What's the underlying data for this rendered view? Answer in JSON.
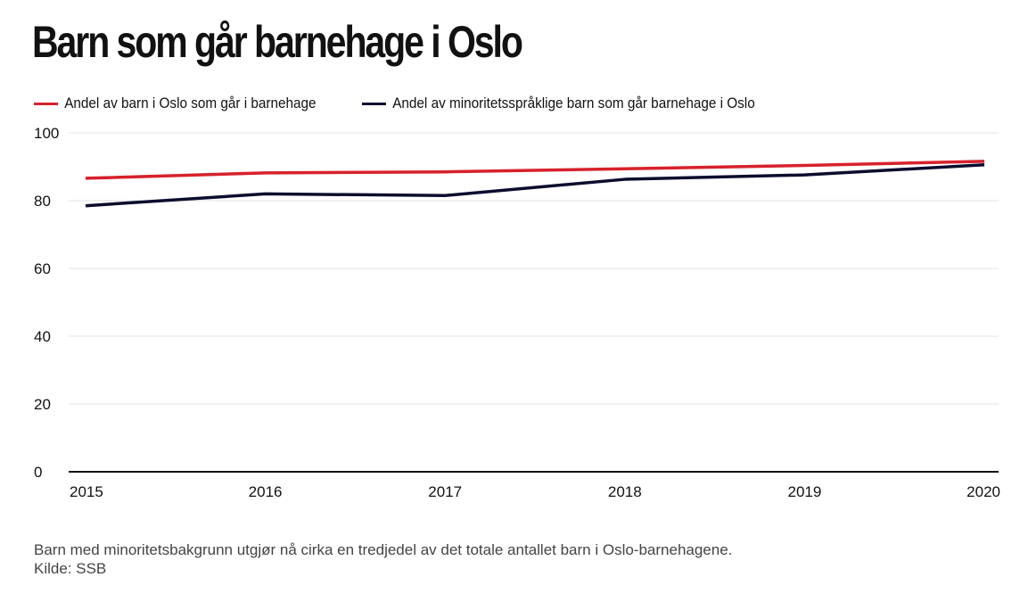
{
  "chart_data": {
    "type": "line",
    "title": "Barn som går barnehage i Oslo",
    "x": [
      "2015",
      "2016",
      "2017",
      "2018",
      "2019",
      "2020"
    ],
    "series": [
      {
        "name": "Andel av barn i Oslo som går i barnehage",
        "color": "#d7212b",
        "values": [
          86.6,
          88.2,
          88.5,
          89.4,
          90.4,
          91.6
        ]
      },
      {
        "name": "Andel av minoritetsspråklige barn som går barnehage i Oslo",
        "color": "#0b0d2e",
        "values": [
          78.5,
          82.0,
          81.5,
          86.3,
          87.6,
          90.6
        ]
      }
    ],
    "yticks": [
      "0",
      "20",
      "40",
      "60",
      "80",
      "100"
    ],
    "ylim": [
      0,
      100
    ],
    "grid": true,
    "legend": "top-left",
    "xlabel": "",
    "ylabel": ""
  },
  "footer": {
    "note": "Barn med minoritetsbakgrunn utgjør nå cirka en tredjedel av det totale antallet barn i Oslo-barnehagene.",
    "source": "Kilde: SSB"
  }
}
